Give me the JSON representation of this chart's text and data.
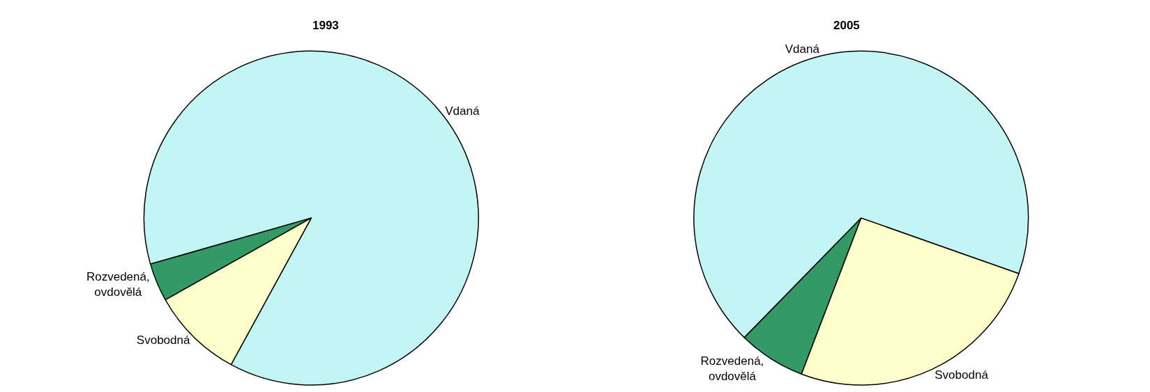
{
  "chart_data": [
    {
      "type": "pie",
      "title": "1993",
      "categories": [
        "Vdaná",
        "Rozvedená,\novdovělá",
        "Svobodná"
      ],
      "values": [
        87.4,
        3.7,
        8.9
      ],
      "colors": [
        "#c4f5f5",
        "#339966",
        "#ffffcc"
      ],
      "legend": false
    },
    {
      "type": "pie",
      "title": "2005",
      "categories": [
        "Vdaná",
        "Rozvedená,\novdovělá",
        "Svobodná"
      ],
      "values": [
        68.1,
        6.5,
        25.4
      ],
      "colors": [
        "#c4f5f5",
        "#339966",
        "#ffffcc"
      ],
      "legend": false
    }
  ]
}
